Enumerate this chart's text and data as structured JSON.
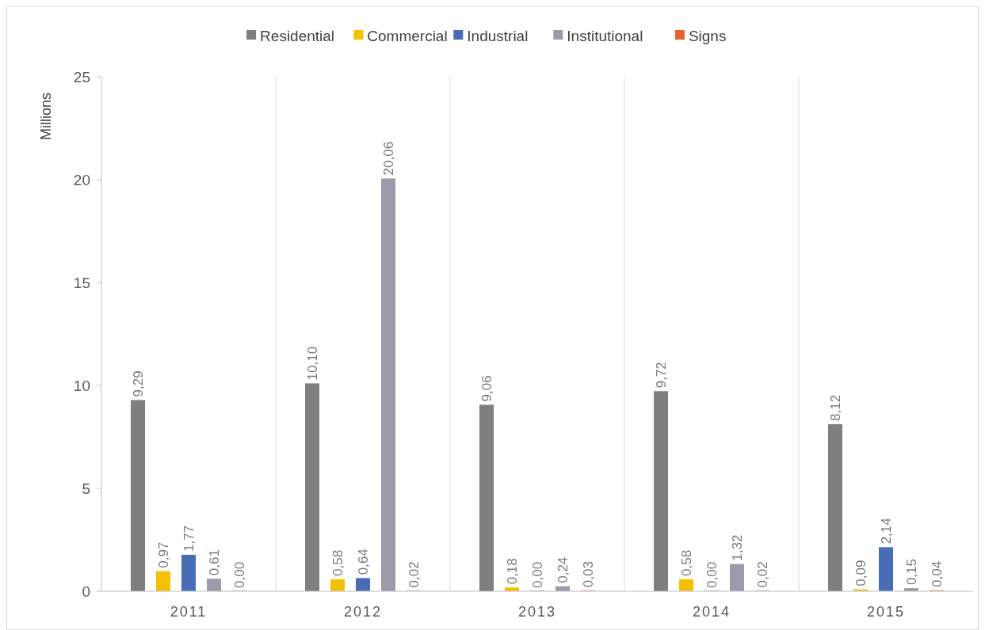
{
  "chart_data": {
    "type": "bar",
    "ylabel": "Millions",
    "categories": [
      "2011",
      "2012",
      "2013",
      "2014",
      "2015"
    ],
    "series": [
      {
        "name": "Residential",
        "color": "#7f7f7f",
        "values": [
          9.29,
          10.1,
          9.06,
          9.72,
          8.12
        ],
        "value_labels": [
          "9,29",
          "10,10",
          "9,06",
          "9,72",
          "8,12"
        ]
      },
      {
        "name": "Commercial",
        "color": "#f5c000",
        "values": [
          0.97,
          0.58,
          0.18,
          0.58,
          0.09
        ],
        "value_labels": [
          "0,97",
          "0,58",
          "0,18",
          "0,58",
          "0,09"
        ]
      },
      {
        "name": "Industrial",
        "color": "#4a6cb7",
        "values": [
          1.77,
          0.64,
          0.0,
          0.0,
          2.14
        ],
        "value_labels": [
          "1,77",
          "0,64",
          "0,00",
          "0,00",
          "2,14"
        ]
      },
      {
        "name": "Institutional",
        "color": "#9b9bab",
        "values": [
          0.61,
          20.06,
          0.24,
          1.32,
          0.15
        ],
        "value_labels": [
          "0,61",
          "20,06",
          "0,24",
          "1,32",
          "0,15"
        ]
      },
      {
        "name": "Signs",
        "color": "#e8602c",
        "values": [
          0.0,
          0.02,
          0.03,
          0.02,
          0.04
        ],
        "value_labels": [
          "0,00",
          "0,02",
          "0,03",
          "0,02",
          "0,04"
        ]
      }
    ],
    "ylim": [
      0,
      25
    ],
    "yticks": [
      0,
      5,
      10,
      15,
      20,
      25
    ],
    "grid": "x",
    "legend": "top"
  }
}
